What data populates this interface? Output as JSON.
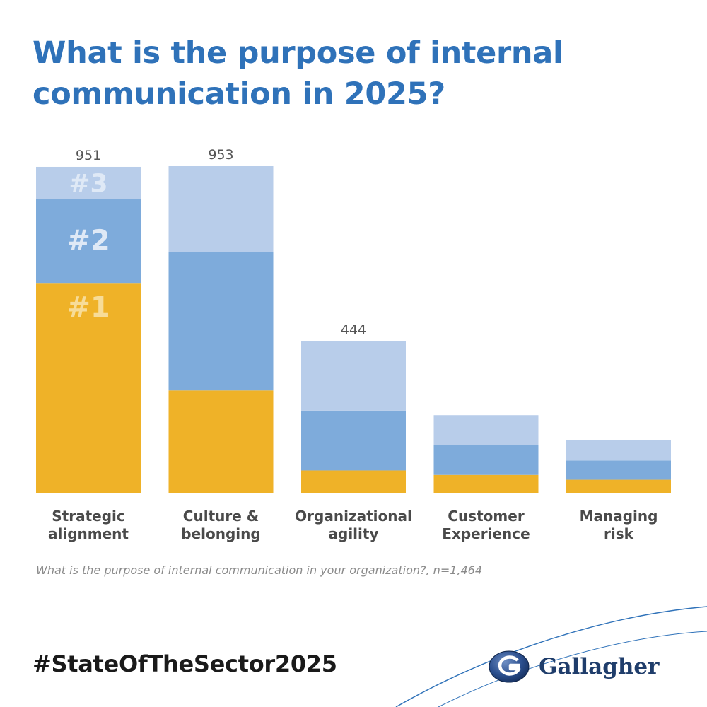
{
  "title": "What is the purpose of internal communication in 2025?",
  "caption": "What is the purpose of internal communication in your organization?, n=1,464",
  "hashtag": "#StateOfTheSector2025",
  "brand": {
    "name": "Gallagher",
    "icon": "gallagher-globe-logo"
  },
  "colors": {
    "title": "#2f72b9",
    "rank1": "#efb228",
    "rank2": "#7eabdb",
    "rank3": "#b8cdea",
    "brand": "#1f3d6b"
  },
  "chart_data": {
    "type": "bar",
    "stacked": true,
    "categories": [
      "Strategic\nalignment",
      "Culture &\nbelonging",
      "Organizational\nagility",
      "Customer\nExperience",
      "Managing\nrisk"
    ],
    "series": [
      {
        "name": "#1",
        "values": [
          613,
          300,
          67,
          54,
          40
        ]
      },
      {
        "name": "#2",
        "values": [
          245,
          403,
          174,
          86,
          56
        ]
      },
      {
        "name": "#3",
        "values": [
          93,
          250,
          203,
          88,
          60
        ]
      }
    ],
    "totals": [
      951,
      953,
      444,
      null,
      null
    ],
    "ylim": [
      0,
      953
    ],
    "xlabel": "",
    "ylabel": ""
  }
}
